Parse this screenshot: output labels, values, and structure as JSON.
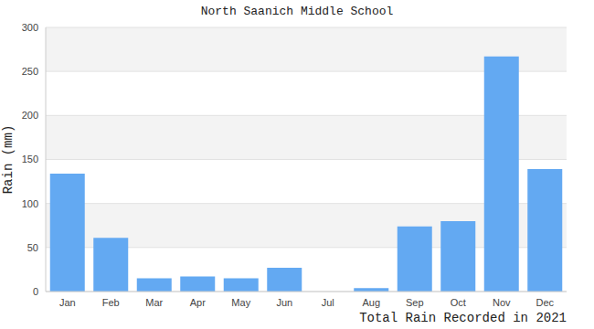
{
  "chart_data": {
    "type": "bar",
    "title": "North Saanich Middle School",
    "x_label": "Total Rain Recorded in 2021",
    "y_label": "Rain (mm)",
    "categories": [
      "Jan",
      "Feb",
      "Mar",
      "Apr",
      "May",
      "Jun",
      "Jul",
      "Aug",
      "Sep",
      "Oct",
      "Nov",
      "Dec"
    ],
    "values": [
      134,
      61,
      15,
      17,
      15,
      27,
      0,
      4,
      74,
      80,
      267,
      139
    ],
    "color": "#63a9f2",
    "ylim": [
      0,
      300
    ],
    "yticks": [
      0,
      50,
      100,
      150,
      200,
      250,
      300
    ],
    "grid": true
  }
}
